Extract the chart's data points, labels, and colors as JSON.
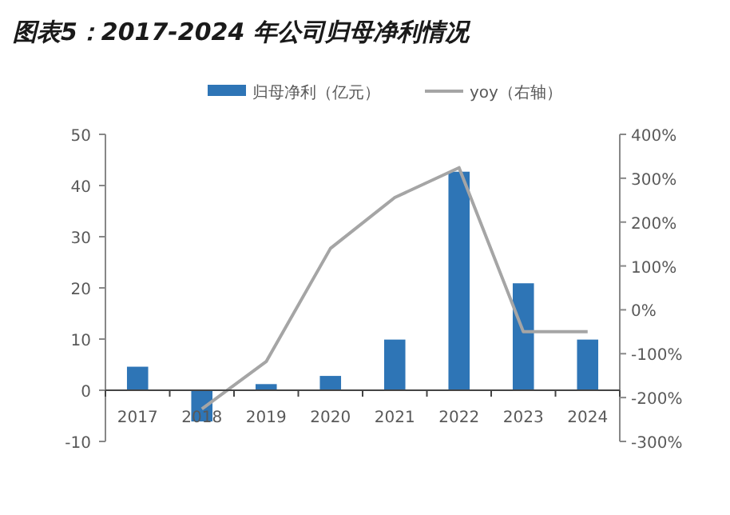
{
  "chart_data": {
    "type": "bar",
    "title": "图表5：2017-2024 年公司归母净利情况",
    "categories": [
      "2017",
      "2018",
      "2019",
      "2020",
      "2021",
      "2022",
      "2023",
      "2024"
    ],
    "series": [
      {
        "name": "归母净利（亿元）",
        "color": "#2e75b6",
        "values": [
          4.6,
          -6.1,
          1.2,
          2.8,
          9.9,
          42.7,
          20.9,
          9.9
        ]
      },
      {
        "name": "yoy（右轴）",
        "type": "line",
        "axis": "y2",
        "color": "#a5a5a5",
        "values": [
          null,
          -226,
          -118,
          140,
          256,
          324,
          -50,
          -50
        ]
      }
    ],
    "ylim": [
      -10,
      50
    ],
    "yticks": [
      -10,
      0,
      10,
      20,
      30,
      40,
      50
    ],
    "y2lim": [
      -300,
      400
    ],
    "y2ticks": [
      {
        "value": -300,
        "label": "-300%"
      },
      {
        "value": -200,
        "label": "-200%"
      },
      {
        "value": -100,
        "label": "-100%"
      },
      {
        "value": 0,
        "label": "0%"
      },
      {
        "value": 100,
        "label": "100%"
      },
      {
        "value": 200,
        "label": "200%"
      },
      {
        "value": 300,
        "label": "300%"
      },
      {
        "value": 400,
        "label": "400%"
      }
    ],
    "legend": "top",
    "grid": false,
    "marker": "none"
  }
}
